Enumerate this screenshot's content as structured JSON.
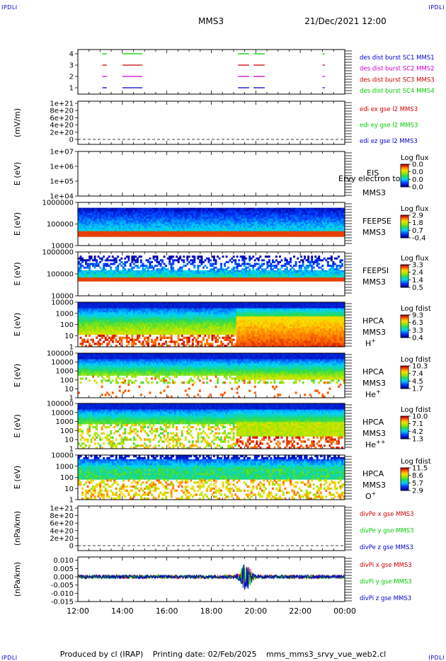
{
  "corner_labels": {
    "top_left": "IPDLI",
    "top_right": "IPDLI",
    "bottom_left": "IPDLI",
    "bottom_right": "IPDLI"
  },
  "header": {
    "spacecraft": "MMS3",
    "datetime": "21/Dec/2021 12:00"
  },
  "footer": {
    "produced_by": "Produced by cl (IRAP)",
    "printing_date": "Printing date: 02/Feb/2025",
    "file": "mms_mms3_srvy_vue_web2.cl"
  },
  "colors": {
    "mms1": "#0000cc",
    "mms2": "#cc00cc",
    "mms3": "#cc0000",
    "mms4": "#00cc00",
    "x": "#cc0000",
    "y": "#00cc00",
    "z": "#0000cc"
  },
  "chart_data": [
    {
      "type": "line",
      "id": "des-burst",
      "x_range": [
        "12:00",
        "00:00"
      ],
      "ytick_labels": [
        "4",
        "3",
        "2",
        "1"
      ],
      "legend": [
        {
          "text": "des dist burst SC1 MMS1",
          "color": "#0000cc"
        },
        {
          "text": "des dist burst SC2 MMS2",
          "color": "#cc00cc"
        },
        {
          "text": "des dist burst SC3 MMS3",
          "color": "#cc0000"
        },
        {
          "text": "des dist burst SC4 MMS4",
          "color": "#00cc00"
        }
      ],
      "intervals_hours": [
        [
          13.1,
          13.3
        ],
        [
          14.0,
          14.9
        ],
        [
          19.2,
          19.7
        ],
        [
          19.9,
          20.4
        ],
        [
          23.0,
          23.1
        ]
      ]
    },
    {
      "type": "line",
      "id": "edi-e",
      "ylabel": "(mV/m)",
      "ytick_labels": [
        "1e+21",
        "8e+20",
        "6e+20",
        "4e+20",
        "2e+20",
        "0"
      ],
      "ylim": [
        0,
        1e+21
      ],
      "legend": [
        {
          "text": "edi ex gse l2 MMS3",
          "color": "#cc0000"
        },
        {
          "text": "edi ey gse l2 MMS3",
          "color": "#00cc00"
        },
        {
          "text": "edi ez gse l2 MMS3",
          "color": "#0000cc"
        }
      ]
    },
    {
      "type": "heatmap",
      "id": "eis",
      "ylabel": "E (eV)",
      "ytick_labels": [
        "1e+07",
        "1e+06",
        "1e+05",
        "1e+04"
      ],
      "labels": [
        "EIS",
        "MMS3"
      ],
      "overlay_text": "Ervy electron to",
      "colorbar": {
        "title": "Log flux",
        "ticks": [
          "0.0",
          "0.0",
          "0.0",
          "0.0"
        ]
      }
    },
    {
      "type": "heatmap",
      "id": "feepse",
      "ylabel": "E (eV)",
      "ytick_labels": [
        "1000000",
        "100000",
        "10000"
      ],
      "labels": [
        "FEEPSE",
        "MMS3"
      ],
      "colorbar": {
        "title": "Log flux",
        "ticks": [
          "2.9",
          "1.8",
          "0.7",
          "-0.4"
        ]
      }
    },
    {
      "type": "heatmap",
      "id": "feepsi",
      "ylabel": "E (eV)",
      "ytick_labels": [
        "1000000",
        "100000",
        "10000"
      ],
      "labels": [
        "FEEPSI",
        "MMS3"
      ],
      "colorbar": {
        "title": "Log flux",
        "ticks": [
          "3.3",
          "2.4",
          "1.4",
          "0.5"
        ]
      }
    },
    {
      "type": "heatmap",
      "id": "hpca-h",
      "ylabel": "E (eV)",
      "ytick_labels": [
        "10000",
        "1000",
        "100",
        "10",
        "1"
      ],
      "labels": [
        "HPCA",
        "MMS3"
      ],
      "species": "H",
      "charge": "+",
      "colorbar": {
        "title": "Log fdist",
        "ticks": [
          "9.3",
          "6.3",
          "3.3",
          "0.4"
        ]
      }
    },
    {
      "type": "heatmap",
      "id": "hpca-he",
      "ylabel": "E (eV)",
      "ytick_labels": [
        "100000",
        "10000",
        "1000",
        "100",
        "10",
        "1"
      ],
      "labels": [
        "HPCA",
        "MMS3"
      ],
      "species": "He",
      "charge": "+",
      "colorbar": {
        "title": "Log fdist",
        "ticks": [
          "10.3",
          "7.4",
          "4.5",
          "1.7"
        ]
      }
    },
    {
      "type": "heatmap",
      "id": "hpca-hepp",
      "ylabel": "E (eV)",
      "ytick_labels": [
        "100000",
        "10000",
        "1000",
        "100",
        "10",
        "1"
      ],
      "labels": [
        "HPCA",
        "MMS3"
      ],
      "species": "He",
      "charge": "++",
      "colorbar": {
        "title": "Log fdist",
        "ticks": [
          "10.0",
          "7.1",
          "4.2",
          "1.3"
        ]
      }
    },
    {
      "type": "heatmap",
      "id": "hpca-o",
      "ylabel": "E (eV)",
      "ytick_labels": [
        "10000",
        "1000",
        "100",
        "10",
        "1"
      ],
      "labels": [
        "HPCA",
        "MMS3"
      ],
      "species": "O",
      "charge": "+",
      "colorbar": {
        "title": "Log fdist",
        "ticks": [
          "11.5",
          "8.6",
          "5.7",
          "2.9"
        ]
      }
    },
    {
      "type": "line",
      "id": "divpe",
      "ylabel": "(nPa/km)",
      "ytick_labels": [
        "1e+21",
        "8e+20",
        "6e+20",
        "4e+20",
        "2e+20",
        "0"
      ],
      "ylim": [
        0,
        1e+21
      ],
      "legend": [
        {
          "text": "divPe x gse MMS3",
          "color": "#cc0000"
        },
        {
          "text": "divPe y gse MMS3",
          "color": "#00cc00"
        },
        {
          "text": "divPe z gse MMS3",
          "color": "#0000cc"
        }
      ]
    },
    {
      "type": "line",
      "id": "divpi",
      "ylabel": "(nPa/km)",
      "ytick_labels": [
        "0.010",
        "0.005",
        "0.000",
        "-0.005",
        "-0.010",
        "-0.015"
      ],
      "ylim": [
        -0.015,
        0.012
      ],
      "legend": [
        {
          "text": "divPi x gse MMS3",
          "color": "#cc0000"
        },
        {
          "text": "divPi y gse MMS3",
          "color": "#00cc00"
        },
        {
          "text": "divPi z gse MMS3",
          "color": "#0000cc"
        }
      ]
    }
  ],
  "x_axis": {
    "ticks": [
      "12:00",
      "14:00",
      "16:00",
      "18:00",
      "20:00",
      "22:00",
      "00:00"
    ],
    "range_hours": [
      12,
      24
    ]
  }
}
